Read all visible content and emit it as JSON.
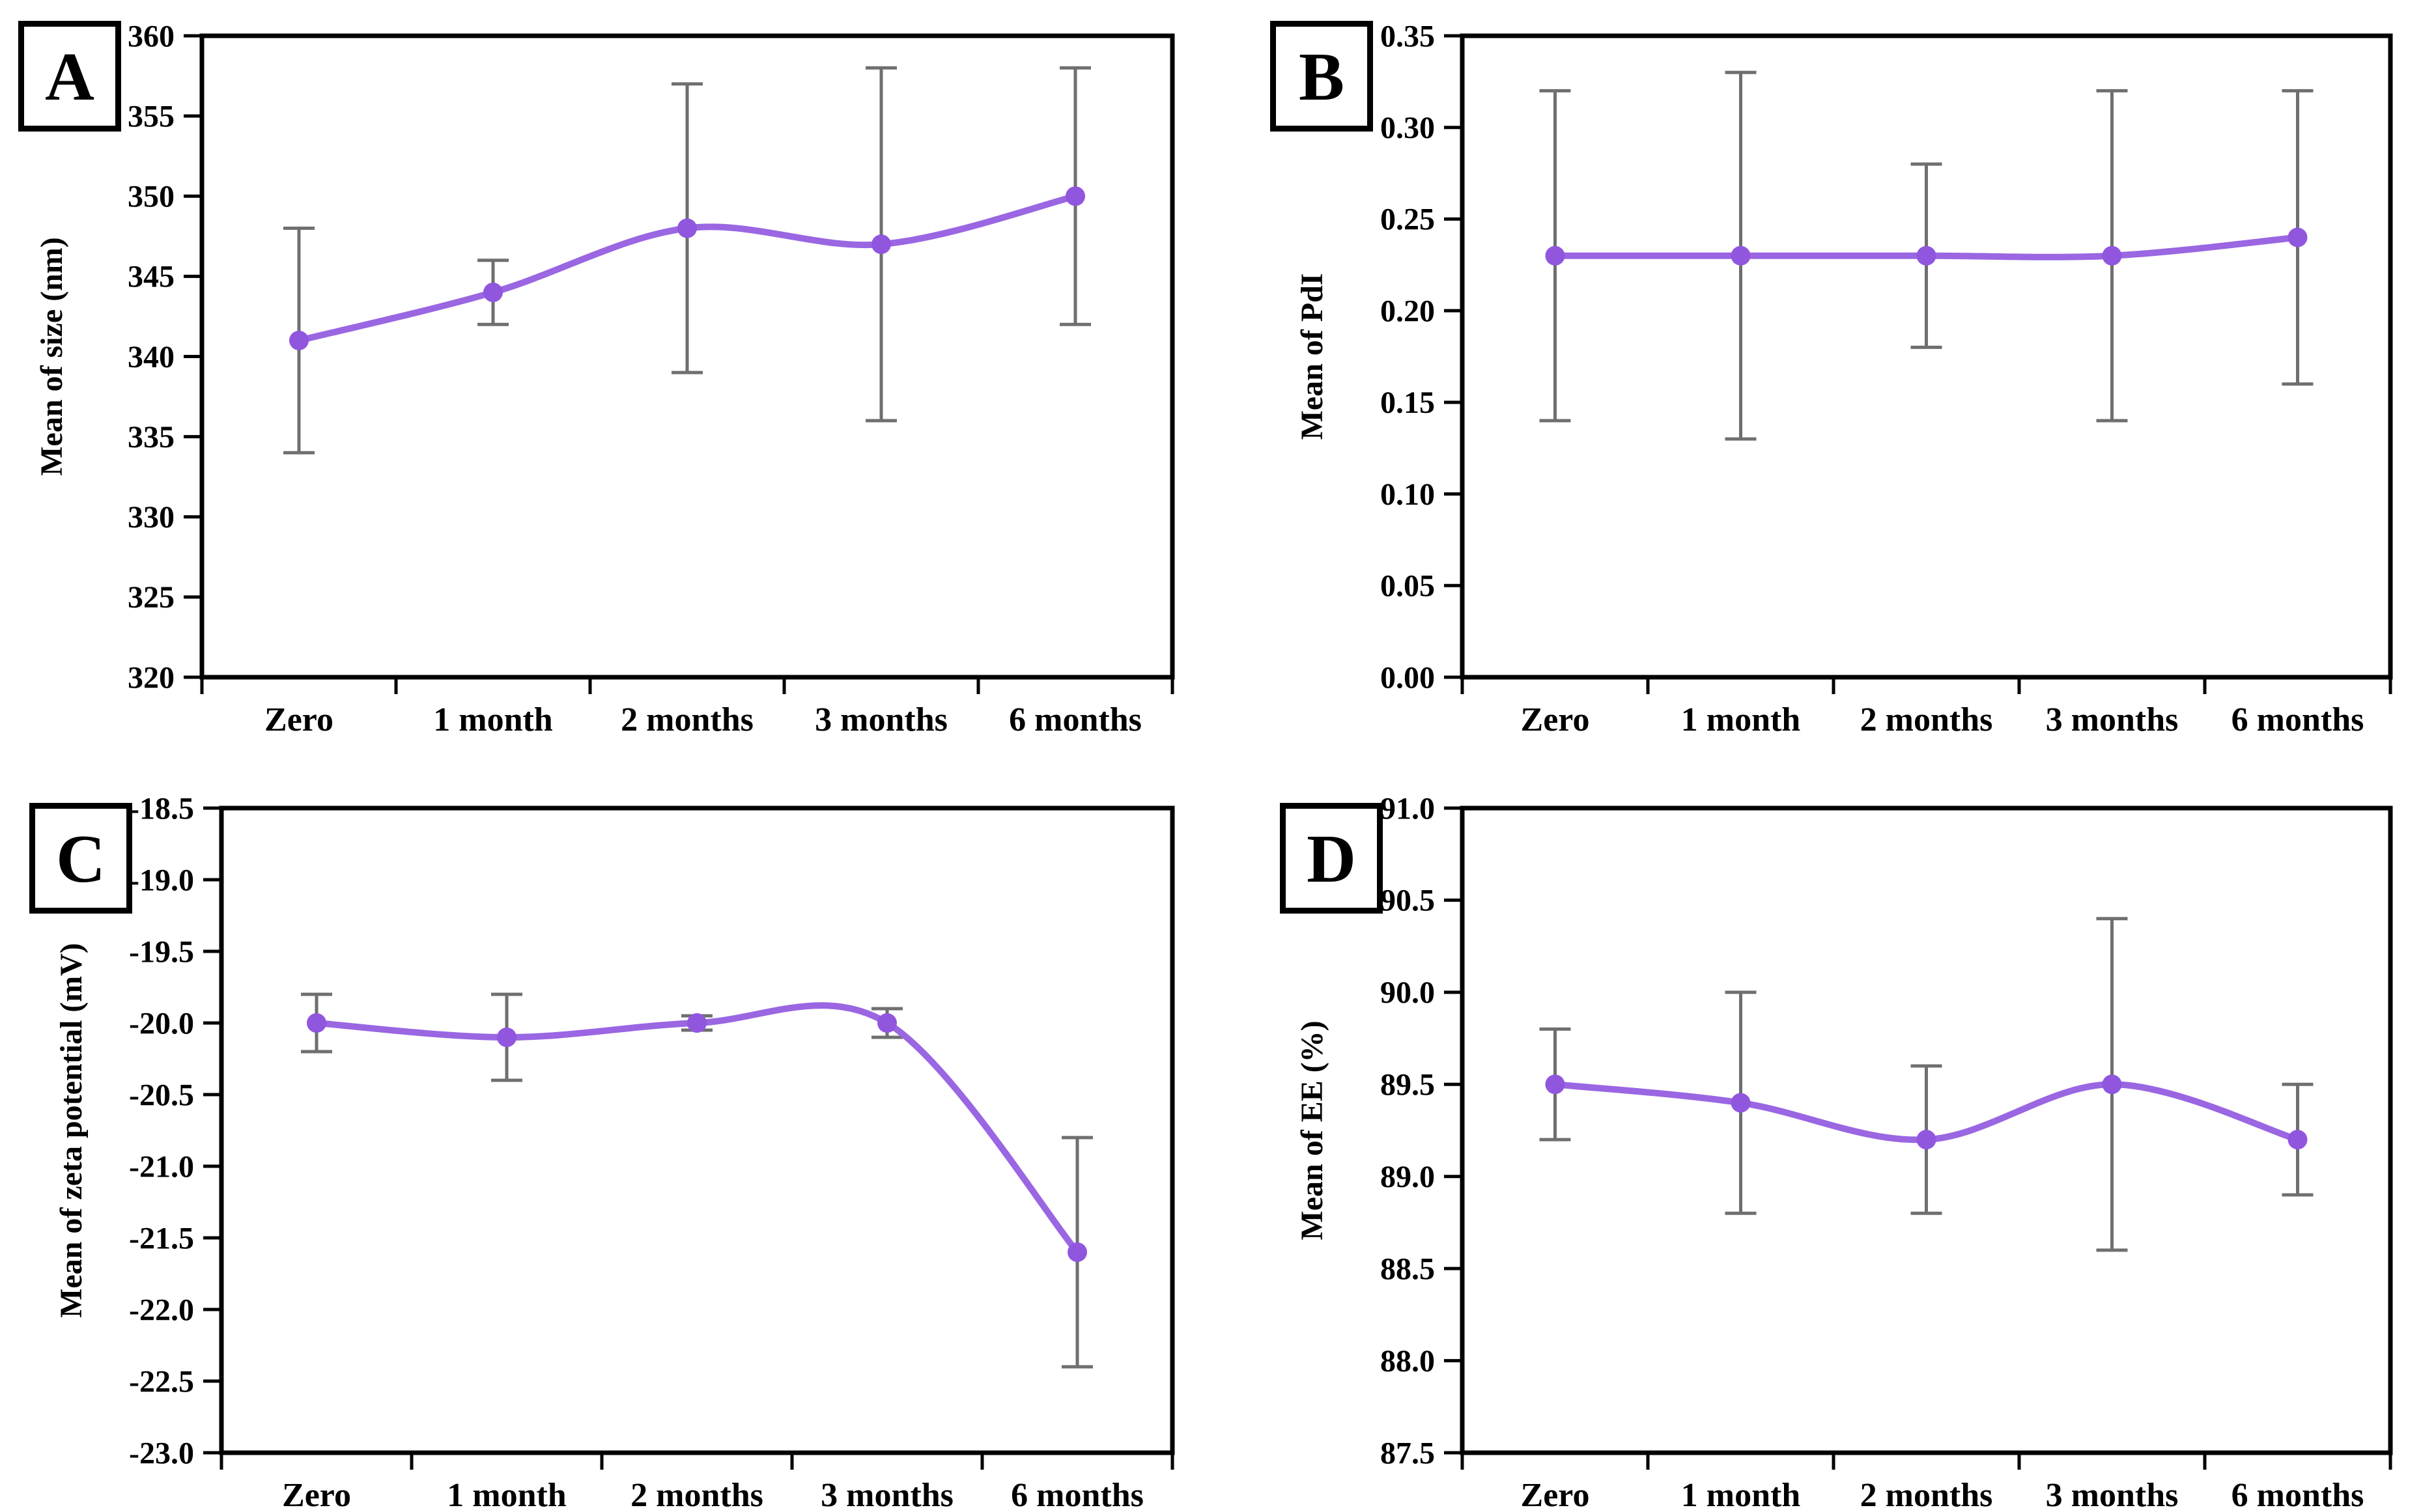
{
  "colors": {
    "series_line": "#9a66e2",
    "series_marker": "#9156de",
    "error_bar": "#6f6f6f",
    "axis": "#000000",
    "panel_border": "#000000",
    "background": "#ffffff"
  },
  "chart_data": [
    {
      "type": "line",
      "panel_label": "A",
      "title": "",
      "xlabel": "",
      "ylabel": "Mean of size (nm)",
      "categories": [
        "Zero",
        "1 month",
        "2 months",
        "3 months",
        "6 months"
      ],
      "series": [
        {
          "name": "Mean of size",
          "values": [
            341,
            344,
            348,
            347,
            350
          ],
          "error_low": [
            334,
            342,
            339,
            336,
            342
          ],
          "error_high": [
            348,
            346,
            357,
            358,
            358
          ]
        }
      ],
      "ylim": [
        320,
        360
      ],
      "ytick_step": 5,
      "ytick_decimals": 0,
      "grid": false,
      "legend": null,
      "smooth": true,
      "error_bars": true
    },
    {
      "type": "line",
      "panel_label": "B",
      "title": "",
      "xlabel": "",
      "ylabel": "Mean of PdI",
      "categories": [
        "Zero",
        "1 month",
        "2 months",
        "3 months",
        "6 months"
      ],
      "series": [
        {
          "name": "Mean of PdI",
          "values": [
            0.23,
            0.23,
            0.23,
            0.23,
            0.24
          ],
          "error_low": [
            0.14,
            0.13,
            0.18,
            0.14,
            0.16
          ],
          "error_high": [
            0.32,
            0.33,
            0.28,
            0.32,
            0.32
          ]
        }
      ],
      "ylim": [
        0.0,
        0.35
      ],
      "ytick_step": 0.05,
      "ytick_decimals": 2,
      "grid": false,
      "legend": null,
      "smooth": true,
      "error_bars": true
    },
    {
      "type": "line",
      "panel_label": "C",
      "title": "",
      "xlabel": "",
      "ylabel": "Mean of zeta potential (mV)",
      "categories": [
        "Zero",
        "1 month",
        "2 months",
        "3 months",
        "6 months"
      ],
      "series": [
        {
          "name": "Mean of zeta potential",
          "values": [
            -20.0,
            -20.1,
            -20.0,
            -20.0,
            -21.6
          ],
          "error_low": [
            -20.2,
            -20.4,
            -20.05,
            -20.1,
            -22.4
          ],
          "error_high": [
            -19.8,
            -19.8,
            -19.95,
            -19.9,
            -20.8
          ]
        }
      ],
      "ylim": [
        -23.0,
        -18.5
      ],
      "ytick_step": 0.5,
      "ytick_decimals": 1,
      "grid": false,
      "legend": null,
      "smooth": true,
      "error_bars": true
    },
    {
      "type": "line",
      "panel_label": "D",
      "title": "",
      "xlabel": "",
      "ylabel": "Mean of EE (%)",
      "categories": [
        "Zero",
        "1 month",
        "2 months",
        "3 months",
        "6 months"
      ],
      "series": [
        {
          "name": "Mean of EE",
          "values": [
            89.5,
            89.4,
            89.2,
            89.5,
            89.2
          ],
          "error_low": [
            89.2,
            88.8,
            88.8,
            88.6,
            88.9
          ],
          "error_high": [
            89.8,
            90.0,
            89.6,
            90.4,
            89.5
          ]
        }
      ],
      "ylim": [
        87.5,
        91.0
      ],
      "ytick_step": 0.5,
      "ytick_decimals": 1,
      "grid": false,
      "legend": null,
      "smooth": true,
      "error_bars": true
    }
  ]
}
